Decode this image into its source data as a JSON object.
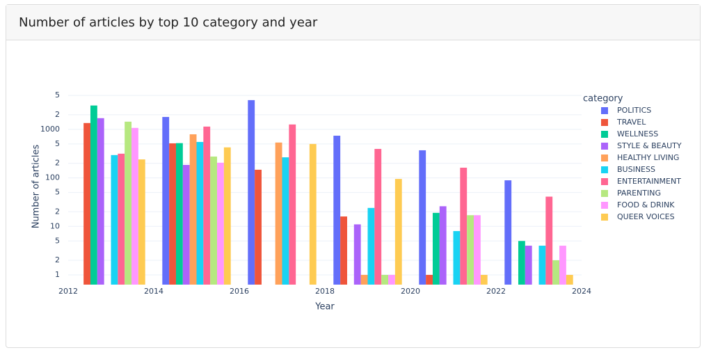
{
  "chart_data": {
    "type": "bar",
    "title": "Number of articles by top 10 category and year",
    "x_label": "Year",
    "y_label": "Number of articles",
    "legend_title": "category",
    "log_y": true,
    "grid": true,
    "barmode": "group",
    "x": [
      2013,
      2015,
      2017,
      2019,
      2021,
      2023
    ],
    "xlim": [
      2012,
      2024
    ],
    "xticks": [
      2012,
      2014,
      2016,
      2018,
      2020,
      2022,
      2024
    ],
    "ylim": [
      0.63,
      6760
    ],
    "yticks": [
      1,
      2,
      5,
      10,
      {
        "value": 20,
        "label": "2"
      },
      {
        "value": 50,
        "label": "5"
      },
      100,
      {
        "value": 200,
        "label": "2"
      },
      {
        "value": 500,
        "label": "5"
      },
      1000,
      {
        "value": 2000,
        "label": "2"
      },
      {
        "value": 5000,
        "label": "5"
      }
    ],
    "series": [
      {
        "name": "POLITICS",
        "color": "#636efa",
        "values": [
          null,
          1800,
          4000,
          740,
          370,
          89
        ]
      },
      {
        "name": "TRAVEL",
        "color": "#ef553b",
        "values": [
          1350,
          515,
          147,
          16,
          1,
          null
        ]
      },
      {
        "name": "WELLNESS",
        "color": "#00cc96",
        "values": [
          3100,
          520,
          null,
          null,
          19,
          5
        ]
      },
      {
        "name": "STYLE & BEAUTY",
        "color": "#ab63fa",
        "values": [
          1700,
          185,
          null,
          11,
          26,
          4
        ]
      },
      {
        "name": "HEALTHY LIVING",
        "color": "#ffa15a",
        "values": [
          null,
          790,
          535,
          1,
          null,
          null
        ]
      },
      {
        "name": "BUSINESS",
        "color": "#19d3f3",
        "values": [
          295,
          550,
          265,
          24,
          8,
          4
        ]
      },
      {
        "name": "ENTERTAINMENT",
        "color": "#ff6692",
        "values": [
          315,
          1140,
          1260,
          395,
          162,
          41
        ]
      },
      {
        "name": "PARENTING",
        "color": "#b6e880",
        "values": [
          1440,
          275,
          null,
          1,
          17,
          2
        ]
      },
      {
        "name": "FOOD & DRINK",
        "color": "#ff97ff",
        "values": [
          1070,
          205,
          null,
          1,
          17,
          4
        ]
      },
      {
        "name": "QUEER VOICES",
        "color": "#fecb52",
        "values": [
          240,
          425,
          500,
          95,
          1,
          1
        ]
      }
    ]
  }
}
